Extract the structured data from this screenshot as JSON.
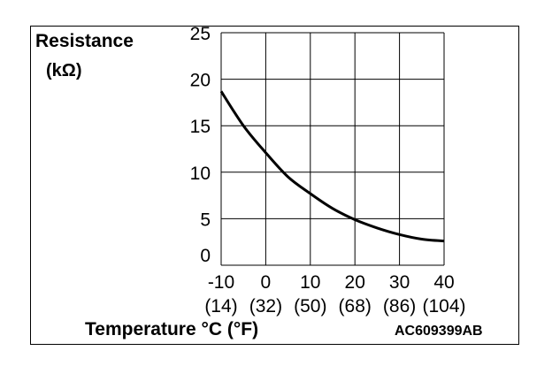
{
  "chart_data": {
    "type": "line",
    "ylabel": "Resistance",
    "yunit": "(kΩ)",
    "xlabel": "Temperature °C (°F)",
    "figure_code": "AC609399AB",
    "xlim": [
      -10,
      40
    ],
    "ylim": [
      0,
      25
    ],
    "x_ticks": [
      -10,
      0,
      10,
      20,
      30,
      40
    ],
    "x_ticks_f": [
      "(14)",
      "(32)",
      "(50)",
      "(68)",
      "(86)",
      "(104)"
    ],
    "y_ticks": [
      0,
      5,
      10,
      15,
      20,
      25
    ],
    "grid": true,
    "series": [
      {
        "x": [
          -10,
          -5,
          0,
          5,
          10,
          15,
          20,
          25,
          30,
          35,
          40
        ],
        "values": [
          18.7,
          15.0,
          12.1,
          9.5,
          7.7,
          6.1,
          4.9,
          4.0,
          3.3,
          2.8,
          2.6
        ]
      }
    ]
  }
}
